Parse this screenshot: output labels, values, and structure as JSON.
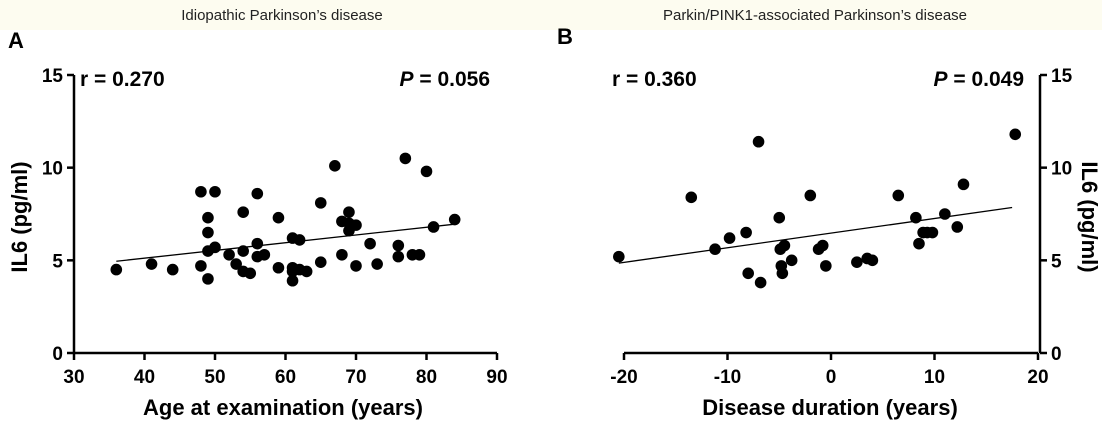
{
  "chart_data": [
    {
      "type": "scatter",
      "panel_letter": "A",
      "title": "Idiopathic Parkinson’s disease",
      "xlabel": "Age at examination (years)",
      "ylabel": "IL6 (pg/ml)",
      "xlim": [
        30,
        90
      ],
      "ylim": [
        0,
        15
      ],
      "xticks": [
        30,
        40,
        50,
        60,
        70,
        80,
        90
      ],
      "yticks": [
        0,
        5,
        10,
        15
      ],
      "yaxis_side": "left",
      "r_label": "r = 0.270",
      "p_letter": "P",
      "p_value": " = 0.056",
      "marker_color": "#000000",
      "points": [
        [
          36,
          4.5
        ],
        [
          41,
          4.8
        ],
        [
          44,
          4.5
        ],
        [
          48,
          8.7
        ],
        [
          48,
          4.7
        ],
        [
          49,
          7.3
        ],
        [
          49,
          6.5
        ],
        [
          49,
          5.5
        ],
        [
          49,
          4.0
        ],
        [
          50,
          8.7
        ],
        [
          50,
          5.7
        ],
        [
          52,
          5.3
        ],
        [
          53,
          4.8
        ],
        [
          54,
          7.6
        ],
        [
          54,
          5.5
        ],
        [
          54,
          4.4
        ],
        [
          55,
          4.3
        ],
        [
          56,
          8.6
        ],
        [
          56,
          5.9
        ],
        [
          56,
          5.2
        ],
        [
          57,
          5.3
        ],
        [
          59,
          7.3
        ],
        [
          59,
          4.6
        ],
        [
          61,
          6.2
        ],
        [
          61,
          4.6
        ],
        [
          61,
          4.4
        ],
        [
          61,
          3.9
        ],
        [
          62,
          6.1
        ],
        [
          62,
          4.5
        ],
        [
          63,
          4.4
        ],
        [
          65,
          8.1
        ],
        [
          65,
          4.9
        ],
        [
          67,
          10.1
        ],
        [
          68,
          7.1
        ],
        [
          68,
          5.3
        ],
        [
          69,
          7.6
        ],
        [
          69,
          7.0
        ],
        [
          69,
          6.6
        ],
        [
          70,
          6.9
        ],
        [
          70,
          4.7
        ],
        [
          72,
          5.9
        ],
        [
          73,
          4.8
        ],
        [
          76,
          5.8
        ],
        [
          76,
          5.2
        ],
        [
          77,
          10.5
        ],
        [
          78,
          5.3
        ],
        [
          79,
          5.3
        ],
        [
          80,
          9.8
        ],
        [
          81,
          6.8
        ],
        [
          84,
          7.2
        ]
      ],
      "fit_line": [
        [
          36,
          4.95
        ],
        [
          84,
          6.95
        ]
      ]
    },
    {
      "type": "scatter",
      "panel_letter": "B",
      "title": "Parkin/PINK1-associated Parkinson’s disease",
      "xlabel": "Disease duration (years)",
      "ylabel": "IL6 (pg/ml)",
      "xlim": [
        -20,
        20
      ],
      "ylim": [
        0,
        15
      ],
      "xticks": [
        -20,
        -10,
        0,
        10,
        20
      ],
      "yticks": [
        0,
        5,
        10,
        15
      ],
      "yaxis_side": "right",
      "r_label": "r = 0.360",
      "p_letter": "P",
      "p_value": " = 0.049",
      "marker_color": "#000000",
      "points": [
        [
          -20.5,
          5.2
        ],
        [
          -13.5,
          8.4
        ],
        [
          -11.2,
          5.6
        ],
        [
          -9.8,
          6.2
        ],
        [
          -8.2,
          6.5
        ],
        [
          -8.0,
          4.3
        ],
        [
          -7.0,
          11.4
        ],
        [
          -6.8,
          3.8
        ],
        [
          -5.0,
          7.3
        ],
        [
          -4.9,
          5.6
        ],
        [
          -4.8,
          4.7
        ],
        [
          -4.7,
          4.3
        ],
        [
          -4.5,
          5.8
        ],
        [
          -3.8,
          5.0
        ],
        [
          -2.0,
          8.5
        ],
        [
          -1.2,
          5.6
        ],
        [
          -0.8,
          5.8
        ],
        [
          -0.5,
          4.7
        ],
        [
          2.5,
          4.9
        ],
        [
          3.5,
          5.1
        ],
        [
          4.0,
          5.0
        ],
        [
          6.5,
          8.5
        ],
        [
          8.2,
          7.3
        ],
        [
          8.5,
          5.9
        ],
        [
          8.9,
          6.5
        ],
        [
          9.3,
          6.5
        ],
        [
          9.8,
          6.5
        ],
        [
          11.0,
          7.5
        ],
        [
          12.2,
          6.8
        ],
        [
          12.8,
          9.1
        ],
        [
          17.8,
          11.8
        ]
      ],
      "fit_line": [
        [
          -20.5,
          4.85
        ],
        [
          17.5,
          7.85
        ]
      ]
    }
  ]
}
